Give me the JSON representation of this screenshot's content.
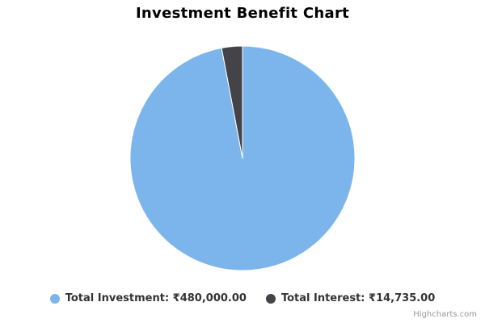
{
  "chart_data": {
    "type": "pie",
    "title": "Investment Benefit Chart",
    "series": [
      {
        "name": "Total Investment",
        "value": 480000,
        "value_label": "₹480,000.00",
        "color": "#7cb5ec"
      },
      {
        "name": "Total Interest",
        "value": 14735,
        "value_label": "₹14,735.00",
        "color": "#434348"
      }
    ],
    "legend_position": "bottom"
  },
  "legend": {
    "items": [
      {
        "label": "Total Investment: ₹480,000.00",
        "color": "#7cb5ec"
      },
      {
        "label": "Total Interest: ₹14,735.00",
        "color": "#434348"
      }
    ]
  },
  "credits": "Highcharts.com"
}
